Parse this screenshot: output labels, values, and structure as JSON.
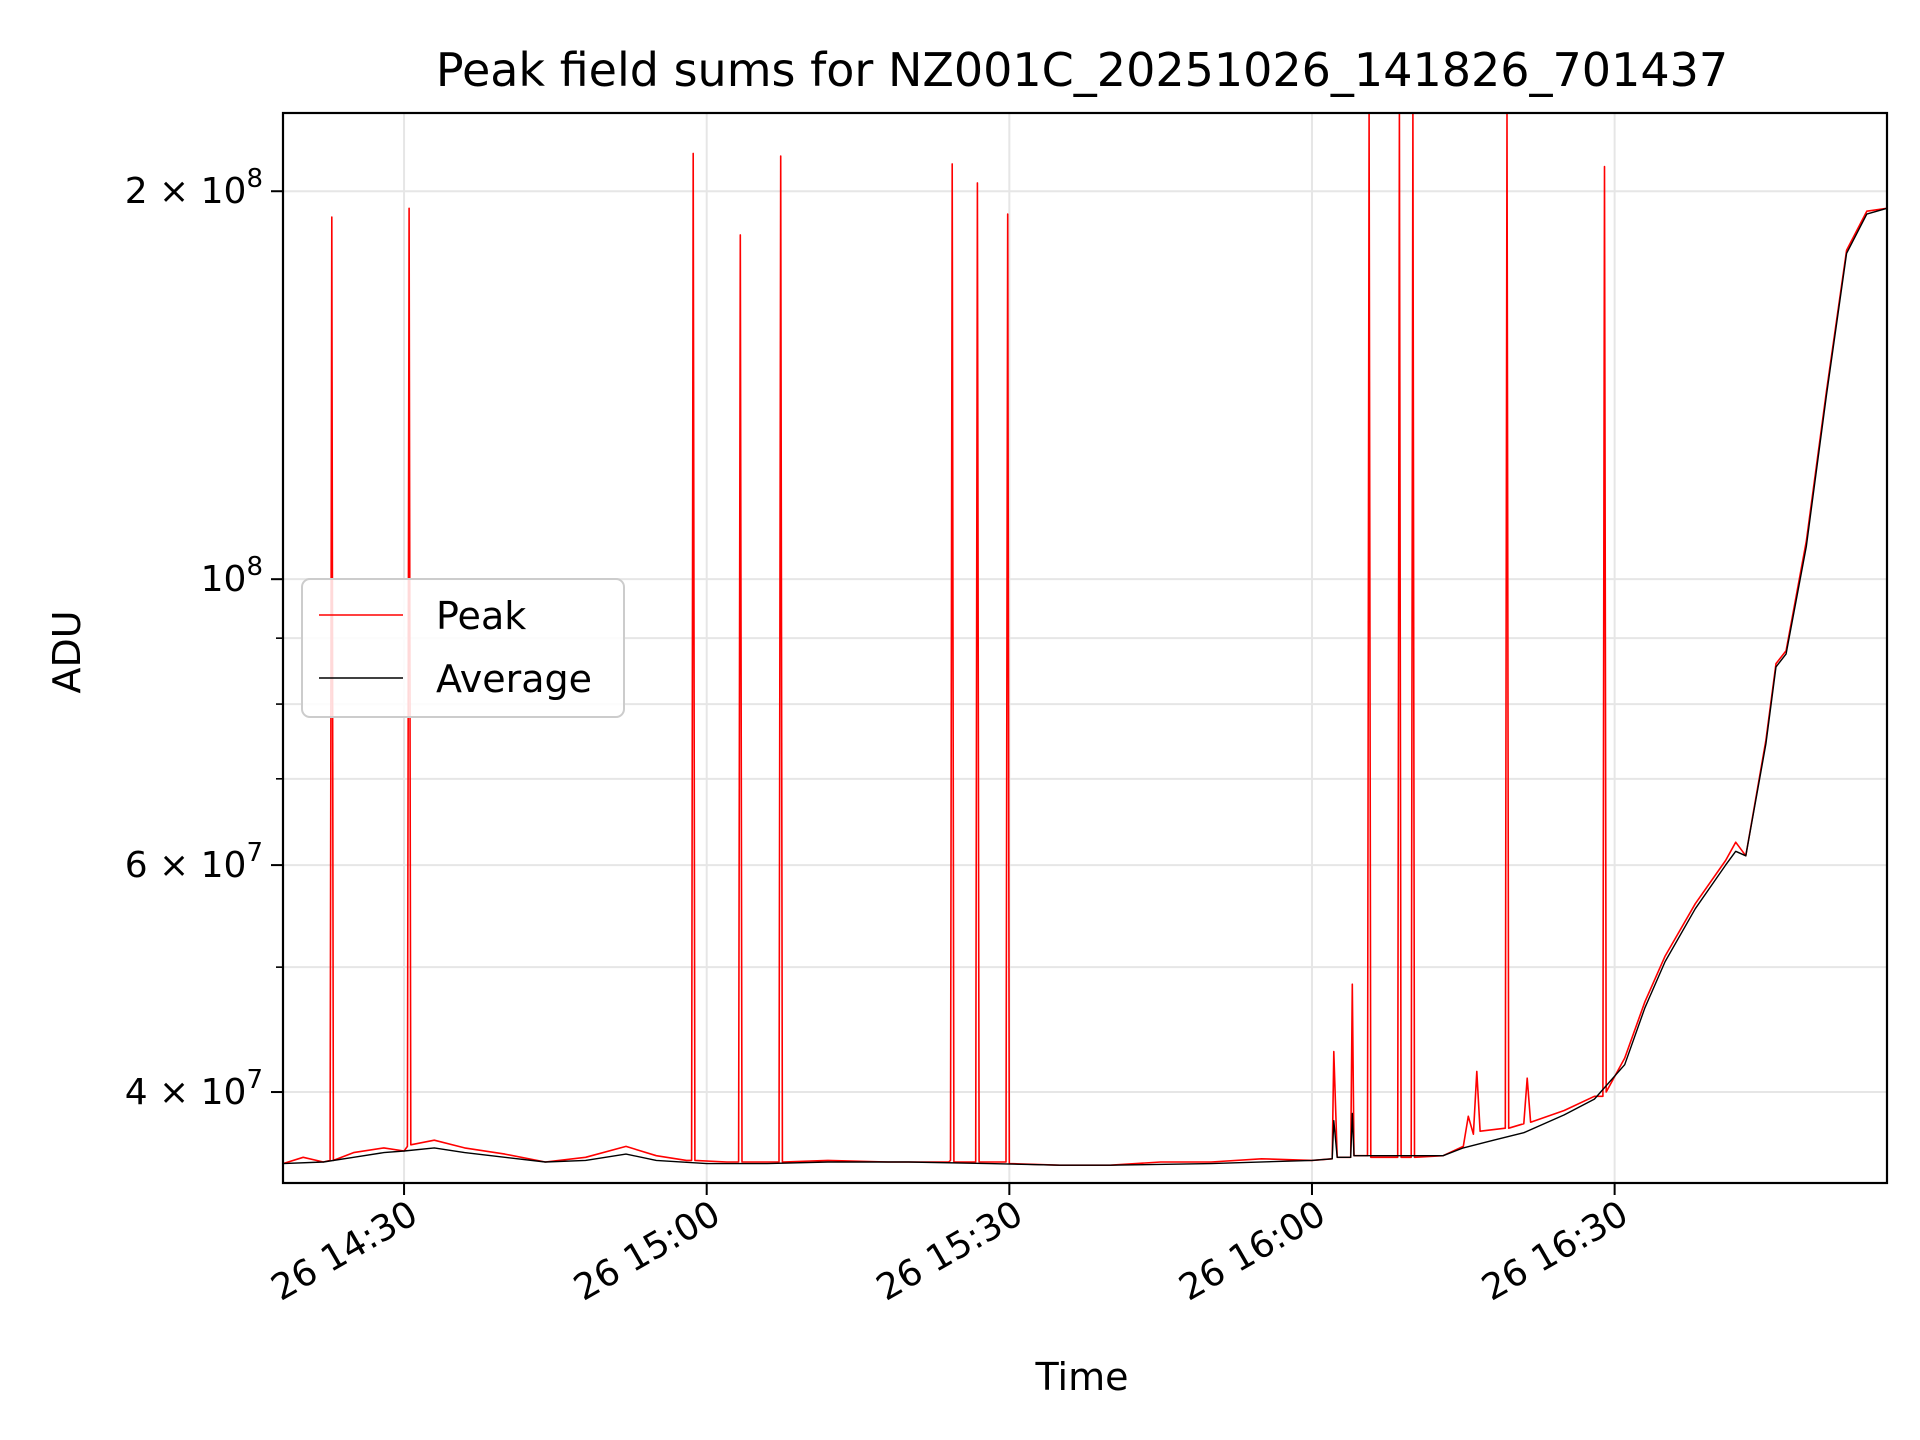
{
  "chart_data": {
    "type": "line",
    "title": "Peak field sums for NZ001C_20251026_141826_701437",
    "xlabel": "Time",
    "ylabel": "ADU",
    "x_range": [
      "2025-10-26 14:18",
      "2025-10-26 16:57"
    ],
    "ylim": [
      34000000,
      230000000
    ],
    "y_scale": "log",
    "grid": true,
    "legend_position": "center-left",
    "x_ticks": [
      {
        "label": "26 14:30",
        "t": "14:30"
      },
      {
        "label": "26 15:00",
        "t": "15:00"
      },
      {
        "label": "26 15:30",
        "t": "15:30"
      },
      {
        "label": "26 16:00",
        "t": "16:00"
      },
      {
        "label": "26 16:30",
        "t": "16:30"
      }
    ],
    "y_ticks": [
      {
        "value": 40000000,
        "mantissa": "4",
        "exp": "7"
      },
      {
        "value": 60000000,
        "mantissa": "6",
        "exp": "7"
      },
      {
        "value": 100000000,
        "mantissa": "",
        "exp": "8"
      },
      {
        "value": 200000000,
        "mantissa": "2",
        "exp": "8"
      }
    ],
    "y_minor_ticks": [
      50000000,
      70000000,
      80000000,
      90000000
    ],
    "series": [
      {
        "name": "Peak",
        "color": "#ff0000",
        "points": [
          [
            "14:18",
            35200000
          ],
          [
            "14:20",
            35600000
          ],
          [
            "14:22",
            35300000
          ],
          [
            "14:22:40",
            35400000
          ],
          [
            "14:22:50",
            191000000
          ],
          [
            "14:23",
            35400000
          ],
          [
            "14:25",
            35900000
          ],
          [
            "14:28",
            36200000
          ],
          [
            "14:30",
            36000000
          ],
          [
            "14:30:20",
            36300000
          ],
          [
            "14:30:30",
            194000000
          ],
          [
            "14:30:40",
            36400000
          ],
          [
            "14:33",
            36700000
          ],
          [
            "14:36",
            36200000
          ],
          [
            "14:40",
            35800000
          ],
          [
            "14:44",
            35300000
          ],
          [
            "14:48",
            35600000
          ],
          [
            "14:52",
            36300000
          ],
          [
            "14:55",
            35700000
          ],
          [
            "14:58",
            35400000
          ],
          [
            "14:58:30",
            35400000
          ],
          [
            "14:58:40",
            214000000
          ],
          [
            "14:58:50",
            35400000
          ],
          [
            "15:02",
            35300000
          ],
          [
            "15:03:10",
            35300000
          ],
          [
            "15:03:20",
            185000000
          ],
          [
            "15:03:30",
            35300000
          ],
          [
            "15:07",
            35300000
          ],
          [
            "15:07:10",
            35300000
          ],
          [
            "15:07:20",
            213000000
          ],
          [
            "15:07:30",
            35300000
          ],
          [
            "15:12",
            35400000
          ],
          [
            "15:18",
            35300000
          ],
          [
            "15:24",
            35300000
          ],
          [
            "15:24:10",
            35400000
          ],
          [
            "15:24:20",
            210000000
          ],
          [
            "15:24:30",
            35300000
          ],
          [
            "15:26:40",
            35300000
          ],
          [
            "15:26:50",
            203000000
          ],
          [
            "15:27",
            35300000
          ],
          [
            "15:29:40",
            35300000
          ],
          [
            "15:29:50",
            192000000
          ],
          [
            "15:30",
            35200000
          ],
          [
            "15:35",
            35100000
          ],
          [
            "15:40",
            35100000
          ],
          [
            "15:45",
            35300000
          ],
          [
            "15:50",
            35300000
          ],
          [
            "15:55",
            35500000
          ],
          [
            "16:00",
            35400000
          ],
          [
            "16:02",
            35500000
          ],
          [
            "16:02:10",
            43000000
          ],
          [
            "16:02:30",
            35600000
          ],
          [
            "16:03:50",
            35600000
          ],
          [
            "16:04",
            48500000
          ],
          [
            "16:04:10",
            35700000
          ],
          [
            "16:05:30",
            35700000
          ],
          [
            "16:05:40",
            230000000
          ],
          [
            "16:05:50",
            35600000
          ],
          [
            "16:08:30",
            35600000
          ],
          [
            "16:08:40",
            230000000
          ],
          [
            "16:08:50",
            35600000
          ],
          [
            "16:09:50",
            35600000
          ],
          [
            "16:10",
            230000000
          ],
          [
            "16:10:10",
            35600000
          ],
          [
            "16:13",
            35700000
          ],
          [
            "16:15",
            36300000
          ],
          [
            "16:15:30",
            38300000
          ],
          [
            "16:16",
            37100000
          ],
          [
            "16:16:20",
            41500000
          ],
          [
            "16:16:40",
            37300000
          ],
          [
            "16:19:10",
            37500000
          ],
          [
            "16:19:20",
            230000000
          ],
          [
            "16:19:30",
            37500000
          ],
          [
            "16:21",
            37800000
          ],
          [
            "16:21:20",
            41000000
          ],
          [
            "16:21:40",
            37900000
          ],
          [
            "16:25",
            38700000
          ],
          [
            "16:28",
            39700000
          ],
          [
            "16:28:50",
            39700000
          ],
          [
            "16:29",
            209000000
          ],
          [
            "16:29:10",
            40000000
          ],
          [
            "16:31",
            42500000
          ],
          [
            "16:33",
            47000000
          ],
          [
            "16:35",
            51000000
          ],
          [
            "16:38",
            56000000
          ],
          [
            "16:41",
            60500000
          ],
          [
            "16:42",
            62500000
          ],
          [
            "16:43",
            61000000
          ],
          [
            "16:45",
            75000000
          ],
          [
            "16:46",
            86000000
          ],
          [
            "16:47",
            88000000
          ],
          [
            "16:49",
            107000000
          ],
          [
            "16:51",
            140000000
          ],
          [
            "16:53",
            180000000
          ],
          [
            "16:55",
            193000000
          ],
          [
            "16:57",
            194000000
          ]
        ]
      },
      {
        "name": "Average",
        "color": "#000000",
        "points": [
          [
            "14:18",
            35200000
          ],
          [
            "14:22",
            35300000
          ],
          [
            "14:25",
            35600000
          ],
          [
            "14:28",
            35900000
          ],
          [
            "14:30",
            36000000
          ],
          [
            "14:33",
            36200000
          ],
          [
            "14:36",
            35900000
          ],
          [
            "14:40",
            35600000
          ],
          [
            "14:44",
            35300000
          ],
          [
            "14:48",
            35400000
          ],
          [
            "14:52",
            35800000
          ],
          [
            "14:55",
            35400000
          ],
          [
            "15:00",
            35200000
          ],
          [
            "15:06",
            35200000
          ],
          [
            "15:12",
            35300000
          ],
          [
            "15:20",
            35300000
          ],
          [
            "15:28",
            35200000
          ],
          [
            "15:35",
            35100000
          ],
          [
            "15:40",
            35100000
          ],
          [
            "15:50",
            35200000
          ],
          [
            "16:00",
            35400000
          ],
          [
            "16:02",
            35500000
          ],
          [
            "16:02:10",
            38000000
          ],
          [
            "16:02:30",
            35600000
          ],
          [
            "16:03:50",
            35600000
          ],
          [
            "16:04",
            38500000
          ],
          [
            "16:04:10",
            35700000
          ],
          [
            "16:10",
            35700000
          ],
          [
            "16:13",
            35700000
          ],
          [
            "16:15",
            36200000
          ],
          [
            "16:18",
            36700000
          ],
          [
            "16:21",
            37200000
          ],
          [
            "16:25",
            38400000
          ],
          [
            "16:28",
            39500000
          ],
          [
            "16:31",
            42000000
          ],
          [
            "16:33",
            46500000
          ],
          [
            "16:35",
            50500000
          ],
          [
            "16:38",
            55500000
          ],
          [
            "16:41",
            60000000
          ],
          [
            "16:42",
            61500000
          ],
          [
            "16:43",
            61000000
          ],
          [
            "16:45",
            74500000
          ],
          [
            "16:46",
            85500000
          ],
          [
            "16:47",
            87500000
          ],
          [
            "16:49",
            106000000
          ],
          [
            "16:51",
            139000000
          ],
          [
            "16:53",
            179000000
          ],
          [
            "16:55",
            192000000
          ],
          [
            "16:57",
            194000000
          ]
        ]
      }
    ]
  }
}
